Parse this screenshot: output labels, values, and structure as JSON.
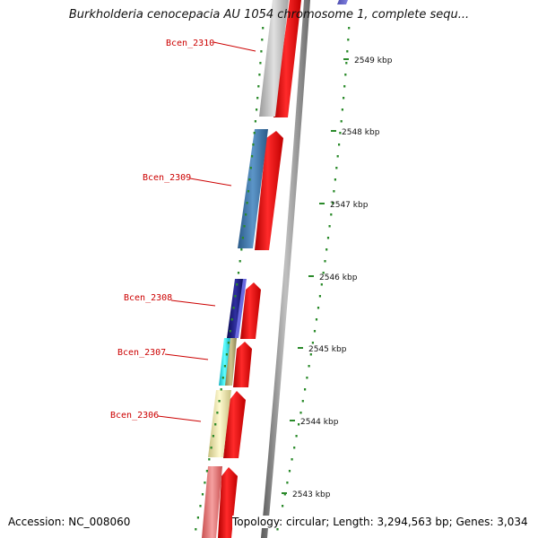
{
  "header": {
    "title": "Burkholderia cenocepacia AU 1054 chromosome 1, complete sequ..."
  },
  "footer": {
    "accession": "Accession: NC_008060",
    "topology": "Topology: circular; Length: 3,294,563 bp; Genes: 3,034"
  },
  "scale_ticks": [
    "2549 kbp",
    "2548 kbp",
    "2547 kbp",
    "2546 kbp",
    "2545 kbp",
    "2544 kbp",
    "2543 kbp"
  ],
  "genes": [
    {
      "name": "Bcen_2310",
      "color": "#c8c8c8"
    },
    {
      "name": "Bcen_2309",
      "color": "#3f78a8"
    },
    {
      "name": "Bcen_2308",
      "color": "#1a1a80"
    },
    {
      "name": "Bcen_2307",
      "color": "#22e0e8"
    },
    {
      "name": "Bcen_2306",
      "color": "#f0e6a0"
    }
  ],
  "colors": {
    "gene_label": "#cc0000",
    "cds_arrow": "#ff0000",
    "backbone": "#888888",
    "tick": "#2a8a2a"
  }
}
